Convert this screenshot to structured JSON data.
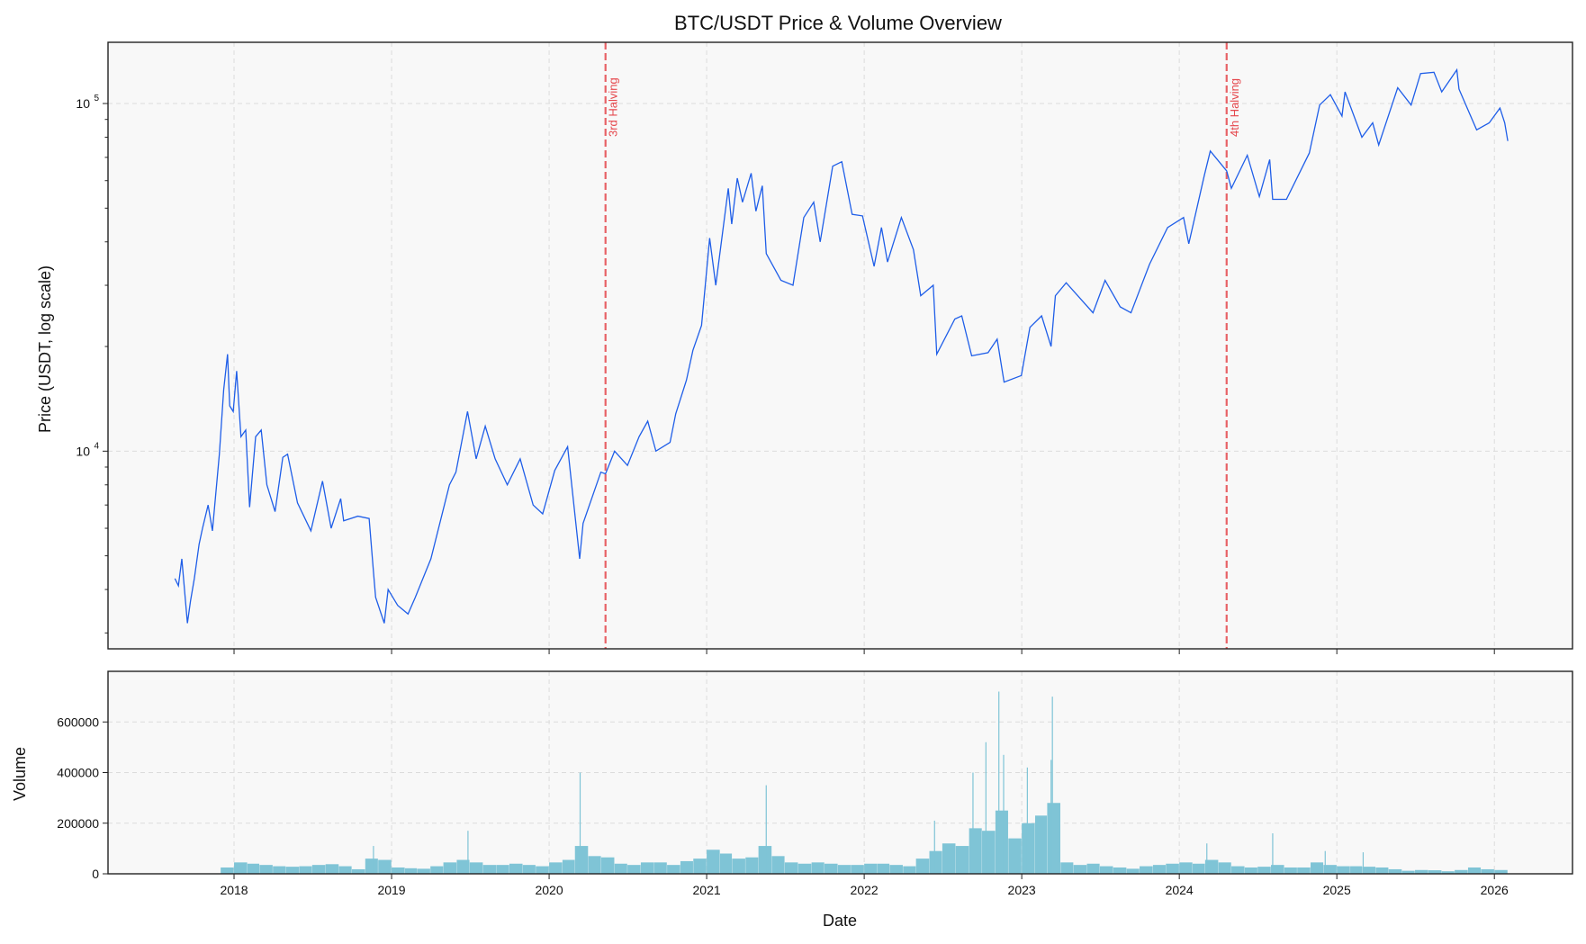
{
  "chart_data": [
    {
      "type": "line",
      "title": "BTC/USDT Price & Volume Overview",
      "ylabel": "Price (USDT, log scale)",
      "xlabel": "",
      "yscale": "log",
      "ylim": [
        2700,
        150000
      ],
      "xlim": [
        "2017-03-15",
        "2026-07-01"
      ],
      "grid": true,
      "colors": {
        "line": "#1f5ee8",
        "halving": "#e5484d",
        "background": "#f8f8f8"
      },
      "yticks": [
        {
          "base": "10",
          "exp": "4",
          "value": 10000
        },
        {
          "base": "10",
          "exp": "5",
          "value": 100000
        }
      ],
      "annotations": [
        {
          "label": "3rd Halving",
          "date": "2020-05-11"
        },
        {
          "label": "4th Halving",
          "date": "2024-04-20"
        }
      ],
      "series": [
        {
          "points": [
            [
              "2017-08-17",
              4300
            ],
            [
              "2017-08-25",
              4100
            ],
            [
              "2017-09-02",
              4900
            ],
            [
              "2017-09-15",
              3200
            ],
            [
              "2017-09-22",
              3700
            ],
            [
              "2017-10-01",
              4300
            ],
            [
              "2017-10-12",
              5400
            ],
            [
              "2017-10-20",
              6000
            ],
            [
              "2017-11-02",
              7000
            ],
            [
              "2017-11-12",
              5900
            ],
            [
              "2017-11-28",
              9800
            ],
            [
              "2017-12-08",
              15000
            ],
            [
              "2017-12-17",
              19000
            ],
            [
              "2017-12-22",
              13500
            ],
            [
              "2017-12-30",
              13000
            ],
            [
              "2018-01-07",
              17000
            ],
            [
              "2018-01-17",
              11000
            ],
            [
              "2018-01-28",
              11500
            ],
            [
              "2018-02-06",
              6900
            ],
            [
              "2018-02-20",
              11000
            ],
            [
              "2018-03-05",
              11500
            ],
            [
              "2018-03-18",
              8000
            ],
            [
              "2018-04-06",
              6700
            ],
            [
              "2018-04-24",
              9600
            ],
            [
              "2018-05-05",
              9800
            ],
            [
              "2018-05-28",
              7100
            ],
            [
              "2018-06-28",
              5900
            ],
            [
              "2018-07-25",
              8200
            ],
            [
              "2018-08-14",
              6000
            ],
            [
              "2018-09-05",
              7300
            ],
            [
              "2018-09-12",
              6300
            ],
            [
              "2018-10-15",
              6500
            ],
            [
              "2018-11-10",
              6400
            ],
            [
              "2018-11-20",
              4500
            ],
            [
              "2018-11-25",
              3800
            ],
            [
              "2018-12-15",
              3200
            ],
            [
              "2018-12-24",
              4000
            ],
            [
              "2019-01-15",
              3600
            ],
            [
              "2019-02-08",
              3400
            ],
            [
              "2019-02-25",
              3800
            ],
            [
              "2019-04-02",
              4900
            ],
            [
              "2019-05-15",
              8000
            ],
            [
              "2019-05-30",
              8700
            ],
            [
              "2019-06-26",
              13000
            ],
            [
              "2019-07-16",
              9500
            ],
            [
              "2019-08-06",
              11800
            ],
            [
              "2019-08-29",
              9500
            ],
            [
              "2019-09-26",
              8000
            ],
            [
              "2019-10-26",
              9500
            ],
            [
              "2019-11-25",
              7000
            ],
            [
              "2019-12-17",
              6600
            ],
            [
              "2020-01-14",
              8800
            ],
            [
              "2020-02-13",
              10300
            ],
            [
              "2020-03-12",
              4900
            ],
            [
              "2020-03-20",
              6200
            ],
            [
              "2020-04-30",
              8700
            ],
            [
              "2020-05-11",
              8600
            ],
            [
              "2020-06-01",
              10000
            ],
            [
              "2020-07-01",
              9100
            ],
            [
              "2020-07-28",
              11000
            ],
            [
              "2020-08-17",
              12200
            ],
            [
              "2020-09-05",
              10000
            ],
            [
              "2020-10-08",
              10600
            ],
            [
              "2020-10-21",
              12800
            ],
            [
              "2020-11-15",
              16000
            ],
            [
              "2020-11-30",
              19500
            ],
            [
              "2020-12-20",
              23000
            ],
            [
              "2021-01-08",
              41000
            ],
            [
              "2021-01-22",
              30000
            ],
            [
              "2021-02-20",
              57000
            ],
            [
              "2021-02-28",
              45000
            ],
            [
              "2021-03-13",
              61000
            ],
            [
              "2021-03-25",
              52000
            ],
            [
              "2021-04-14",
              63000
            ],
            [
              "2021-04-25",
              49000
            ],
            [
              "2021-05-10",
              58000
            ],
            [
              "2021-05-19",
              37000
            ],
            [
              "2021-06-22",
              31000
            ],
            [
              "2021-07-20",
              30000
            ],
            [
              "2021-08-14",
              47000
            ],
            [
              "2021-09-06",
              52000
            ],
            [
              "2021-09-21",
              40000
            ],
            [
              "2021-10-20",
              66000
            ],
            [
              "2021-11-10",
              68000
            ],
            [
              "2021-12-04",
              48000
            ],
            [
              "2021-12-28",
              47500
            ],
            [
              "2022-01-24",
              34000
            ],
            [
              "2022-02-10",
              44000
            ],
            [
              "2022-02-24",
              35000
            ],
            [
              "2022-03-28",
              47000
            ],
            [
              "2022-04-25",
              38000
            ],
            [
              "2022-05-12",
              28000
            ],
            [
              "2022-06-10",
              30000
            ],
            [
              "2022-06-18",
              19000
            ],
            [
              "2022-07-30",
              24000
            ],
            [
              "2022-08-15",
              24500
            ],
            [
              "2022-09-07",
              18800
            ],
            [
              "2022-10-15",
              19200
            ],
            [
              "2022-11-05",
              21000
            ],
            [
              "2022-11-21",
              15800
            ],
            [
              "2022-12-31",
              16500
            ],
            [
              "2023-01-20",
              22700
            ],
            [
              "2023-02-16",
              24500
            ],
            [
              "2023-03-10",
              20000
            ],
            [
              "2023-03-20",
              28000
            ],
            [
              "2023-04-14",
              30500
            ],
            [
              "2023-06-15",
              25000
            ],
            [
              "2023-07-13",
              31000
            ],
            [
              "2023-08-17",
              26000
            ],
            [
              "2023-09-11",
              25000
            ],
            [
              "2023-10-24",
              34500
            ],
            [
              "2023-12-05",
              44000
            ],
            [
              "2024-01-11",
              47000
            ],
            [
              "2024-01-23",
              39500
            ],
            [
              "2024-02-28",
              62000
            ],
            [
              "2024-03-13",
              73000
            ],
            [
              "2024-04-20",
              64000
            ],
            [
              "2024-05-01",
              57000
            ],
            [
              "2024-06-07",
              71000
            ],
            [
              "2024-07-05",
              54000
            ],
            [
              "2024-07-29",
              69000
            ],
            [
              "2024-08-05",
              53000
            ],
            [
              "2024-09-06",
              53000
            ],
            [
              "2024-10-29",
              72000
            ],
            [
              "2024-11-22",
              99000
            ],
            [
              "2024-12-17",
              106000
            ],
            [
              "2025-01-13",
              92000
            ],
            [
              "2025-01-20",
              108000
            ],
            [
              "2025-02-28",
              80000
            ],
            [
              "2025-03-25",
              88000
            ],
            [
              "2025-04-08",
              76000
            ],
            [
              "2025-05-22",
              111000
            ],
            [
              "2025-06-22",
              99000
            ],
            [
              "2025-07-14",
              122000
            ],
            [
              "2025-08-14",
              123000
            ],
            [
              "2025-09-01",
              108000
            ],
            [
              "2025-10-06",
              125000
            ],
            [
              "2025-10-11",
              110000
            ],
            [
              "2025-11-21",
              84000
            ],
            [
              "2025-12-20",
              88000
            ],
            [
              "2026-01-14",
              97000
            ],
            [
              "2026-01-25",
              88000
            ],
            [
              "2026-02-01",
              78000
            ]
          ]
        }
      ]
    },
    {
      "type": "bar",
      "xlabel": "Date",
      "ylabel": "Volume",
      "ylim": [
        0,
        800000
      ],
      "grid": true,
      "colors": {
        "bar": "#7fc4d6",
        "background": "#f8f8f8"
      },
      "yticks": [
        "0",
        "200000",
        "400000",
        "600000"
      ],
      "xticks": [
        "2018",
        "2019",
        "2020",
        "2021",
        "2022",
        "2023",
        "2024",
        "2025",
        "2026"
      ],
      "monthly_typical": [
        [
          "2017-12",
          25000
        ],
        [
          "2018-01",
          45000
        ],
        [
          "2018-02",
          40000
        ],
        [
          "2018-03",
          35000
        ],
        [
          "2018-04",
          30000
        ],
        [
          "2018-05",
          28000
        ],
        [
          "2018-06",
          30000
        ],
        [
          "2018-07",
          35000
        ],
        [
          "2018-08",
          38000
        ],
        [
          "2018-09",
          30000
        ],
        [
          "2018-10",
          18000
        ],
        [
          "2018-11",
          60000
        ],
        [
          "2018-12",
          55000
        ],
        [
          "2019-01",
          25000
        ],
        [
          "2019-02",
          22000
        ],
        [
          "2019-03",
          20000
        ],
        [
          "2019-04",
          30000
        ],
        [
          "2019-05",
          45000
        ],
        [
          "2019-06",
          55000
        ],
        [
          "2019-07",
          45000
        ],
        [
          "2019-08",
          35000
        ],
        [
          "2019-09",
          35000
        ],
        [
          "2019-10",
          40000
        ],
        [
          "2019-11",
          35000
        ],
        [
          "2019-12",
          30000
        ],
        [
          "2020-01",
          45000
        ],
        [
          "2020-02",
          55000
        ],
        [
          "2020-03",
          110000
        ],
        [
          "2020-04",
          70000
        ],
        [
          "2020-05",
          65000
        ],
        [
          "2020-06",
          40000
        ],
        [
          "2020-07",
          35000
        ],
        [
          "2020-08",
          45000
        ],
        [
          "2020-09",
          45000
        ],
        [
          "2020-10",
          35000
        ],
        [
          "2020-11",
          50000
        ],
        [
          "2020-12",
          60000
        ],
        [
          "2021-01",
          95000
        ],
        [
          "2021-02",
          80000
        ],
        [
          "2021-03",
          60000
        ],
        [
          "2021-04",
          65000
        ],
        [
          "2021-05",
          110000
        ],
        [
          "2021-06",
          70000
        ],
        [
          "2021-07",
          45000
        ],
        [
          "2021-08",
          40000
        ],
        [
          "2021-09",
          45000
        ],
        [
          "2021-10",
          40000
        ],
        [
          "2021-11",
          35000
        ],
        [
          "2021-12",
          35000
        ],
        [
          "2022-01",
          40000
        ],
        [
          "2022-02",
          40000
        ],
        [
          "2022-03",
          35000
        ],
        [
          "2022-04",
          30000
        ],
        [
          "2022-05",
          60000
        ],
        [
          "2022-06",
          90000
        ],
        [
          "2022-07",
          120000
        ],
        [
          "2022-08",
          110000
        ],
        [
          "2022-09",
          180000
        ],
        [
          "2022-10",
          170000
        ],
        [
          "2022-11",
          250000
        ],
        [
          "2022-12",
          140000
        ],
        [
          "2023-01",
          200000
        ],
        [
          "2023-02",
          230000
        ],
        [
          "2023-03",
          280000
        ],
        [
          "2023-04",
          45000
        ],
        [
          "2023-05",
          35000
        ],
        [
          "2023-06",
          40000
        ],
        [
          "2023-07",
          30000
        ],
        [
          "2023-08",
          25000
        ],
        [
          "2023-09",
          20000
        ],
        [
          "2023-10",
          30000
        ],
        [
          "2023-11",
          35000
        ],
        [
          "2023-12",
          40000
        ],
        [
          "2024-01",
          45000
        ],
        [
          "2024-02",
          40000
        ],
        [
          "2024-03",
          55000
        ],
        [
          "2024-04",
          45000
        ],
        [
          "2024-05",
          30000
        ],
        [
          "2024-06",
          25000
        ],
        [
          "2024-07",
          28000
        ],
        [
          "2024-08",
          35000
        ],
        [
          "2024-09",
          25000
        ],
        [
          "2024-10",
          25000
        ],
        [
          "2024-11",
          45000
        ],
        [
          "2024-12",
          35000
        ],
        [
          "2025-01",
          30000
        ],
        [
          "2025-02",
          30000
        ],
        [
          "2025-03",
          28000
        ],
        [
          "2025-04",
          25000
        ],
        [
          "2025-05",
          18000
        ],
        [
          "2025-06",
          12000
        ],
        [
          "2025-07",
          15000
        ],
        [
          "2025-08",
          14000
        ],
        [
          "2025-09",
          10000
        ],
        [
          "2025-10",
          15000
        ],
        [
          "2025-11",
          25000
        ],
        [
          "2025-12",
          18000
        ],
        [
          "2026-01",
          15000
        ]
      ],
      "spikes": [
        [
          "2018-11-20",
          110000
        ],
        [
          "2019-06-27",
          170000
        ],
        [
          "2020-03-13",
          400000
        ],
        [
          "2021-05-19",
          350000
        ],
        [
          "2022-06-13",
          210000
        ],
        [
          "2022-09-10",
          400000
        ],
        [
          "2022-10-10",
          520000
        ],
        [
          "2022-11-09",
          720000
        ],
        [
          "2022-11-20",
          470000
        ],
        [
          "2023-01-14",
          420000
        ],
        [
          "2023-03-10",
          450000
        ],
        [
          "2023-03-13",
          700000
        ],
        [
          "2024-03-05",
          120000
        ],
        [
          "2024-08-05",
          160000
        ],
        [
          "2024-12-05",
          90000
        ],
        [
          "2025-03-03",
          85000
        ]
      ]
    }
  ]
}
